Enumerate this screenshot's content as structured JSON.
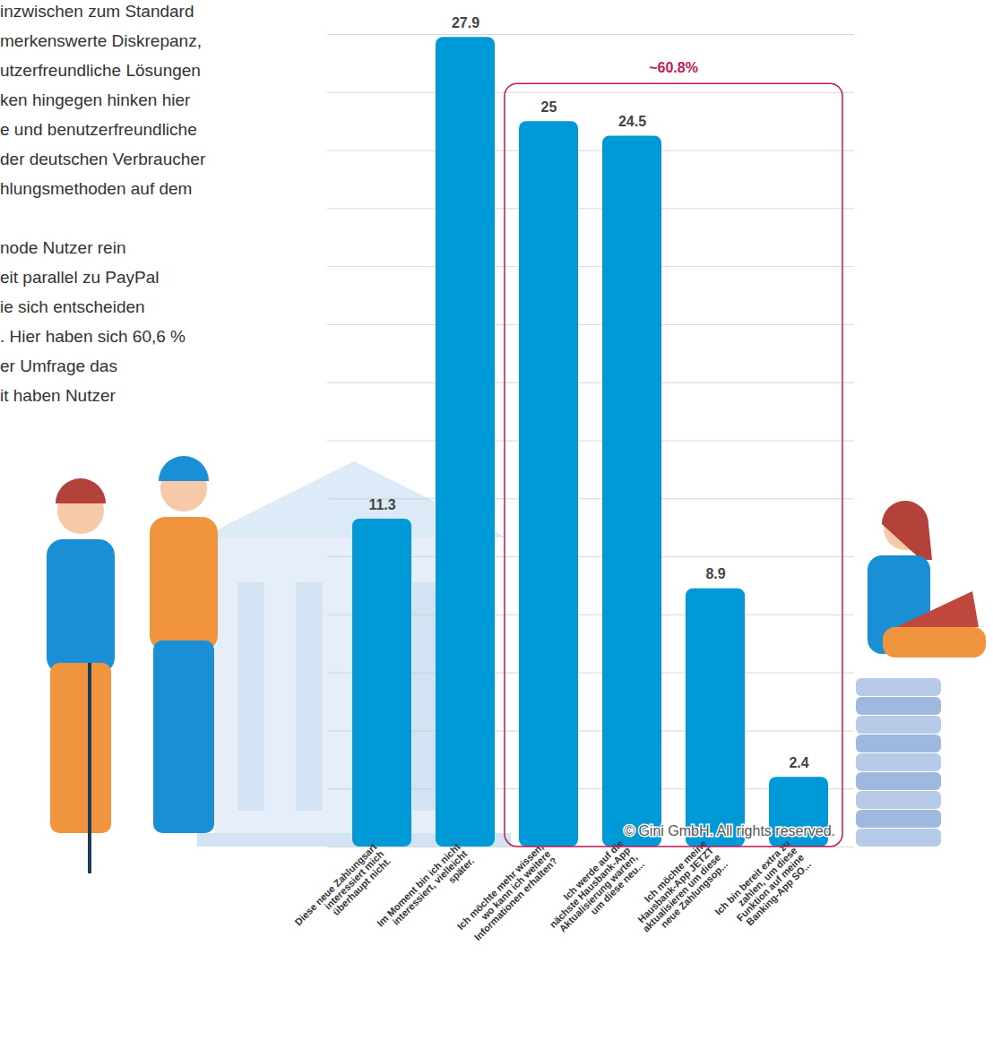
{
  "chart_data": {
    "type": "bar",
    "categories": [
      "Diese neue Zahlungsart interessiert mich überhaupt nicht.",
      "Im Moment bin ich nicht interessiert, vielleicht später.",
      "Ich möchte mehr wissen, wo kann ich weitere Informationen erhalten?",
      "Ich werde auf die nächste Hausbank-App Aktualisierung warten, um diese neu...",
      "Ich möchte meine Hausbank-App JETZT aktualisieren um diese neue Zahlungsop...",
      "Ich bin bereit extra zu zahlen, um diese Funktion auf meine Banking-App SO..."
    ],
    "values": [
      11.3,
      27.9,
      25,
      24.5,
      8.9,
      2.4
    ],
    "color": "#0099d8",
    "ylim": [
      0,
      28
    ],
    "yticks": [
      0,
      2,
      4,
      6,
      8,
      10,
      12,
      14,
      16,
      18,
      20,
      22,
      24,
      26,
      28
    ],
    "grid": true,
    "tick_labels": "x",
    "data_labels": true,
    "annotations": [
      {
        "text": "~60.8%",
        "from": "Ich möchte mehr wissen, wo kann ich weitere Informationen erhalten?",
        "to": "Ich bin bereit extra zu zahlen, um diese Funktion auf meine Banking-App SO..."
      }
    ],
    "credit": "© Gini GmbH. All rights reserved.",
    "text_lines": [
      "inzwischen zum Standard",
      "merkenswerte Diskrepanz,",
      "utzerfreundliche Lösungen",
      "ken hingegen hinken hier",
      "e und benutzerfreundliche",
      "der deutschen Verbraucher",
      "hlungsmethoden auf dem",
      "node Nutzer rein",
      "eit parallel zu PayPal",
      "ie sich entscheiden",
      ". Hier haben sich 60,6 %",
      "er Umfrage das",
      "it haben Nutzer"
    ]
  }
}
